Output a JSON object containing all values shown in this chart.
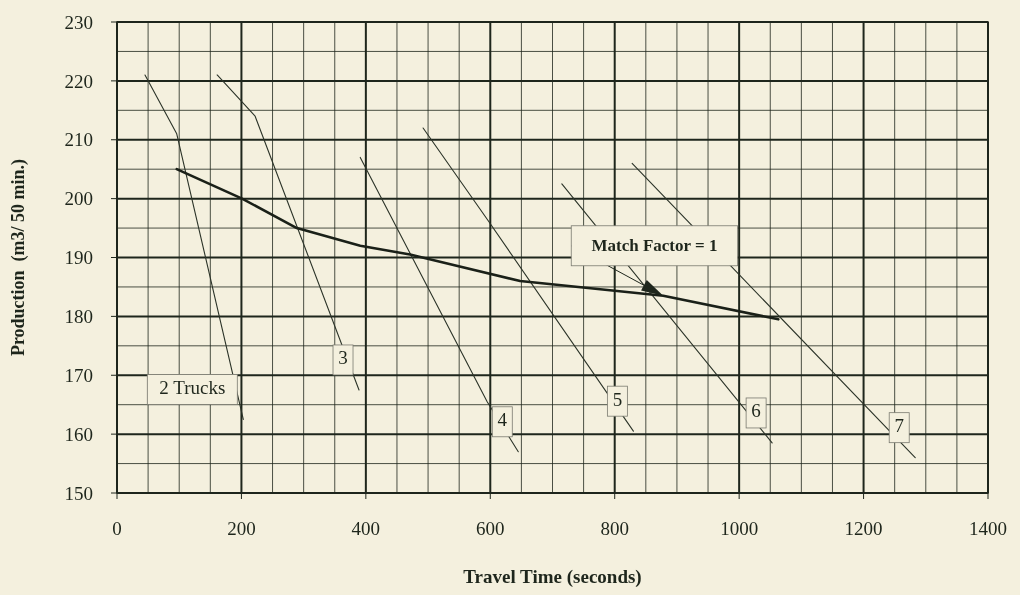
{
  "chart_data": {
    "type": "line",
    "xlabel": "Travel Time (seconds)",
    "ylabel": "Production  (m3/ 50 min.)",
    "xlim": [
      0,
      1400
    ],
    "xticks": [
      0,
      200,
      400,
      600,
      800,
      1000,
      1200,
      1400
    ],
    "ylim": [
      150,
      230
    ],
    "yticks": [
      150,
      160,
      170,
      180,
      190,
      200,
      210,
      220,
      230
    ],
    "grid": true,
    "marker": "none",
    "line_style": "solid",
    "series": [
      {
        "name": "2 Trucks",
        "color": "#2b3328",
        "x": [
          45,
          96,
          203
        ],
        "values": [
          221,
          211,
          162.5
        ]
      },
      {
        "name": "3",
        "color": "#2b3328",
        "x": [
          161,
          222,
          389
        ],
        "values": [
          221,
          214,
          167.5
        ]
      },
      {
        "name": "4",
        "color": "#2b3328",
        "x": [
          391,
          595,
          645
        ],
        "values": [
          207,
          165.5,
          157
        ]
      },
      {
        "name": "5",
        "color": "#2b3328",
        "x": [
          492,
          595,
          830
        ],
        "values": [
          212,
          196.5,
          160.5
        ]
      },
      {
        "name": "6",
        "color": "#2b3328",
        "x": [
          715,
          1053
        ],
        "values": [
          202.5,
          158.5
        ]
      },
      {
        "name": "7",
        "color": "#2b3328",
        "x": [
          828,
          1283
        ],
        "values": [
          206,
          156
        ]
      },
      {
        "color": "#1a2018",
        "x": [
          96,
          201,
          289,
          391,
          471,
          648,
          878,
          1063
        ],
        "values": [
          205,
          200,
          195,
          192,
          190.5,
          186,
          183.5,
          179.5
        ]
      }
    ],
    "annotations": [
      {
        "text": "Match Factor = 1",
        "x": 878,
        "y": 183.5
      }
    ]
  }
}
